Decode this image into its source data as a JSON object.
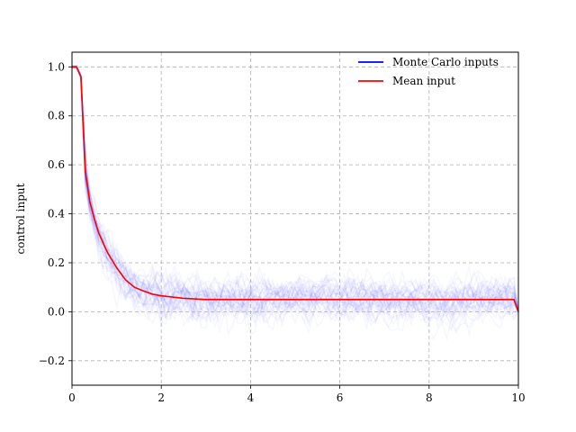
{
  "chart_data": {
    "type": "line",
    "title": "",
    "xlabel": "",
    "ylabel": "control input",
    "xlim": [
      0,
      10
    ],
    "ylim": [
      -0.3,
      1.06
    ],
    "x_ticks": [
      0,
      2,
      4,
      6,
      8,
      10
    ],
    "x_tick_labels": [
      "0",
      "2",
      "4",
      "6",
      "8",
      "10"
    ],
    "y_ticks": [
      -0.2,
      0.0,
      0.2,
      0.4,
      0.6,
      0.8,
      1.0
    ],
    "y_tick_labels": [
      "−0.2",
      "0.0",
      "0.2",
      "0.4",
      "0.6",
      "0.8",
      "1.0"
    ],
    "grid": true,
    "grid_style": "dashed",
    "legend": {
      "placement": "top-right",
      "entries": [
        {
          "label": "Monte Carlo inputs",
          "color": "#0000ff"
        },
        {
          "label": "Mean input",
          "color": "#ff0000"
        }
      ]
    },
    "series": [
      {
        "name": "Mean input",
        "color": "#ff0000",
        "x": [
          0,
          0.1,
          0.2,
          0.3,
          0.4,
          0.5,
          0.6,
          0.8,
          1.0,
          1.2,
          1.4,
          1.6,
          1.8,
          2.0,
          2.5,
          3.0,
          4.0,
          5.0,
          6.0,
          7.0,
          8.0,
          9.0,
          9.9,
          10.0
        ],
        "y": [
          1.0,
          1.0,
          0.96,
          0.57,
          0.45,
          0.38,
          0.32,
          0.24,
          0.18,
          0.13,
          0.1,
          0.085,
          0.072,
          0.065,
          0.055,
          0.05,
          0.05,
          0.05,
          0.05,
          0.05,
          0.05,
          0.05,
          0.05,
          0.0
        ]
      }
    ],
    "monte_carlo": {
      "name": "Monte Carlo inputs",
      "color": "#0000ff",
      "runs": 40,
      "noise_std": 0.08,
      "opacity": 0.035
    }
  }
}
